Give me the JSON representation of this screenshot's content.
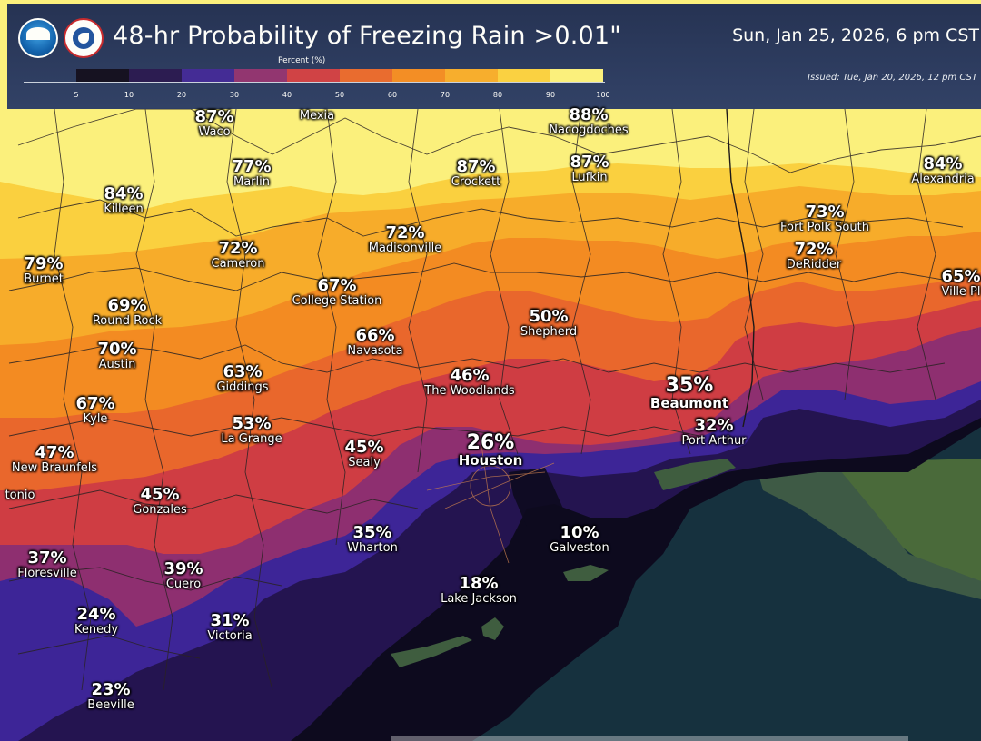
{
  "header": {
    "title": "48-hr Probability of Freezing Rain >0.01\"",
    "valid_time": "Sun, Jan 25, 2026, 6 pm CST",
    "issued": "Issued: Tue, Jan 20, 2026, 12 pm CST"
  },
  "legend": {
    "title": "Percent (%)",
    "ticks": [
      "5",
      "10",
      "20",
      "30",
      "40",
      "50",
      "60",
      "70",
      "80",
      "90",
      "100"
    ],
    "colors": [
      "#0d0a1e",
      "#241450",
      "#3d2597",
      "#8e2f70",
      "#cf3d43",
      "#e9672c",
      "#f38b22",
      "#f7ac2a",
      "#fad03f",
      "#fbf07c"
    ]
  },
  "logos": {
    "noaa": "NOAA",
    "nws": "noaa-nws-logo"
  },
  "cities": [
    {
      "name": "Waco",
      "pct": "87%"
    },
    {
      "name": "Mexia",
      "pct": ""
    },
    {
      "name": "Nacogdoches",
      "pct": "88%"
    },
    {
      "name": "Marlin",
      "pct": "77%"
    },
    {
      "name": "Crockett",
      "pct": "87%"
    },
    {
      "name": "Lufkin",
      "pct": "87%"
    },
    {
      "name": "Alexandria",
      "pct": "84%"
    },
    {
      "name": "Killeen",
      "pct": "84%"
    },
    {
      "name": "Fort Polk South",
      "pct": "73%"
    },
    {
      "name": "Madisonville",
      "pct": "72%"
    },
    {
      "name": "Cameron",
      "pct": "72%"
    },
    {
      "name": "DeRidder",
      "pct": "72%"
    },
    {
      "name": "Burnet",
      "pct": "79%"
    },
    {
      "name": "Ville Pl",
      "pct": "65%"
    },
    {
      "name": "College Station",
      "pct": "67%"
    },
    {
      "name": "Round Rock",
      "pct": "69%"
    },
    {
      "name": "Shepherd",
      "pct": "50%"
    },
    {
      "name": "Navasota",
      "pct": "66%"
    },
    {
      "name": "Austin",
      "pct": "70%"
    },
    {
      "name": "Giddings",
      "pct": "63%"
    },
    {
      "name": "The Woodlands",
      "pct": "46%"
    },
    {
      "name": "Beaumont",
      "pct": "35%"
    },
    {
      "name": "Kyle",
      "pct": "67%"
    },
    {
      "name": "La Grange",
      "pct": "53%"
    },
    {
      "name": "Port Arthur",
      "pct": "32%"
    },
    {
      "name": "Sealy",
      "pct": "45%"
    },
    {
      "name": "Houston",
      "pct": "26%"
    },
    {
      "name": "New Braunfels",
      "pct": "47%"
    },
    {
      "name": "Gonzales",
      "pct": "45%"
    },
    {
      "name": "tonio",
      "pct": ""
    },
    {
      "name": "Wharton",
      "pct": "35%"
    },
    {
      "name": "Galveston",
      "pct": "10%"
    },
    {
      "name": "Floresville",
      "pct": "37%"
    },
    {
      "name": "Cuero",
      "pct": "39%"
    },
    {
      "name": "Lake Jackson",
      "pct": "18%"
    },
    {
      "name": "Kenedy",
      "pct": "24%"
    },
    {
      "name": "Victoria",
      "pct": "31%"
    },
    {
      "name": "Beeville",
      "pct": "23%"
    }
  ]
}
